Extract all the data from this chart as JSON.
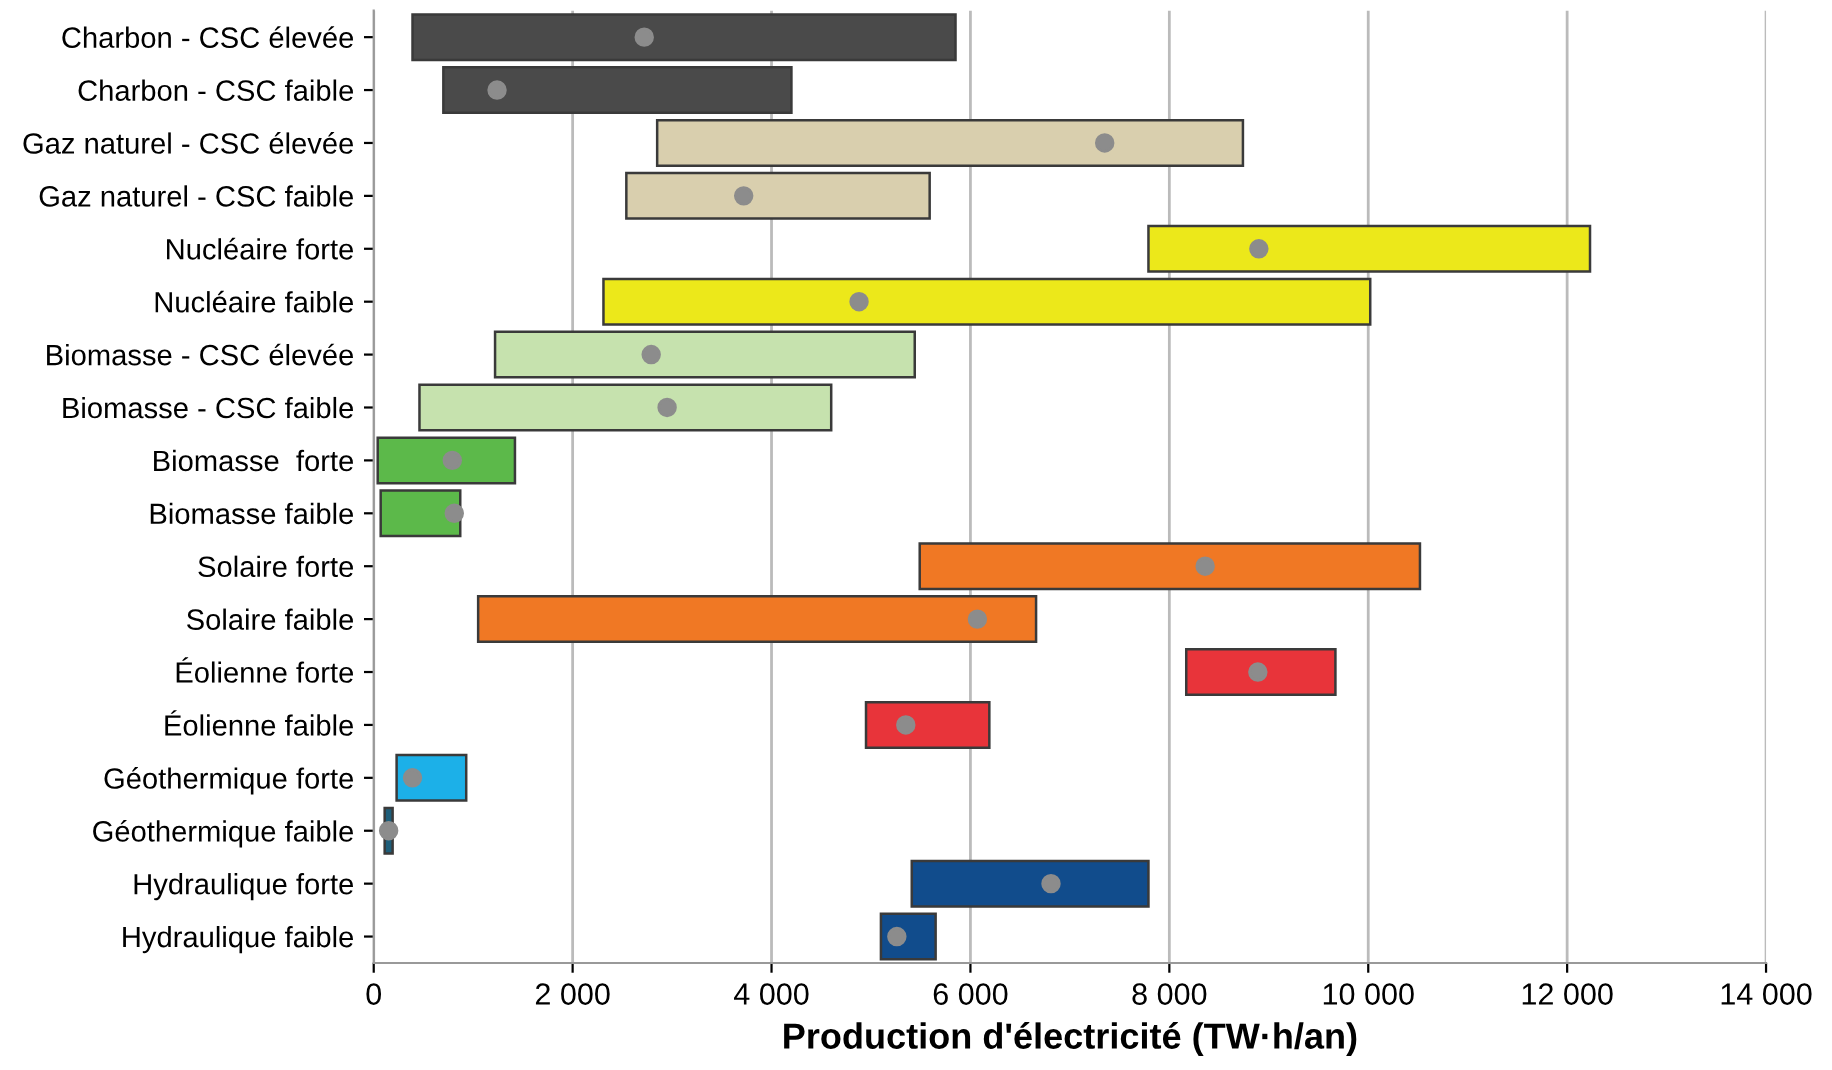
{
  "chart_data": {
    "type": "bar",
    "orientation": "horizontal",
    "xlabel": "Production d'électricité (TW·h/an)",
    "categories": [
      "Charbon - CSC élevée",
      "Charbon - CSC faible",
      "Gaz naturel - CSC élevée",
      "Gaz naturel - CSC faible",
      "Nucléaire forte",
      "Nucléaire faible",
      "Biomasse - CSC élevée",
      "Biomasse - CSC faible",
      "Biomasse  forte",
      "Biomasse faible",
      "Solaire forte",
      "Solaire faible",
      "Éolienne forte",
      "Éolienne faible",
      "Géothermique forte",
      "Géothermique faible",
      "Hydraulique forte",
      "Hydraulique faible"
    ],
    "series": [
      {
        "base": [
          390,
          700,
          2850,
          2540,
          7790,
          2310,
          1220,
          460,
          40,
          70,
          5490,
          1050,
          8170,
          4950,
          230,
          110,
          5410,
          5100
        ],
        "values": [
          5460,
          3500,
          5890,
          3050,
          4440,
          7710,
          4220,
          4140,
          1380,
          800,
          5030,
          5610,
          1500,
          1240,
          700,
          80,
          2380,
          550
        ],
        "colors": [
          "#4a4a4a",
          "#4a4a4a",
          "#d9cfae",
          "#d9cfae",
          "#ece81a",
          "#ece81a",
          "#c6e2ae",
          "#c6e2ae",
          "#5cb94a",
          "#5cb94a",
          "#f07824",
          "#f07824",
          "#e8343a",
          "#e8343a",
          "#1cb0e8",
          "#1e5e7a",
          "#114c8c",
          "#114c8c"
        ]
      },
      {
        "type": "scatter",
        "color": "#8c8c8c",
        "marker": "circle",
        "values": [
          2720,
          1240,
          7350,
          3720,
          8900,
          4880,
          2790,
          2950,
          790,
          810,
          8360,
          6070,
          8890,
          5350,
          390,
          150,
          6810,
          5260
        ]
      }
    ],
    "xlim": [
      0,
      14000
    ],
    "xticks": [
      0,
      {
        "value": 2000,
        "label": "2 000"
      },
      {
        "value": 4000,
        "label": "4 000"
      },
      {
        "value": 6000,
        "label": "6 000"
      },
      {
        "value": 8000,
        "label": "8 000"
      },
      {
        "value": 10000,
        "label": "10 000"
      },
      {
        "value": 12000,
        "label": "12 000"
      },
      {
        "value": 14000,
        "label": "14 000"
      }
    ],
    "grid": "x"
  }
}
